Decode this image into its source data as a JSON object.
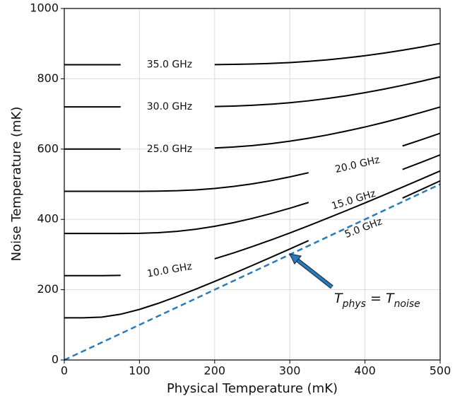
{
  "chart_data": {
    "type": "line",
    "xlabel": "Physical Temperature (mK)",
    "ylabel": "Noise Temperature (mK)",
    "xlim": [
      0,
      500
    ],
    "ylim": [
      0,
      1000
    ],
    "xticks": [
      0,
      100,
      200,
      300,
      400,
      500
    ],
    "yticks": [
      0,
      200,
      400,
      600,
      800,
      1000
    ],
    "grid": true,
    "x": [
      0,
      25,
      50,
      75,
      100,
      125,
      150,
      175,
      200,
      225,
      250,
      275,
      300,
      325,
      350,
      375,
      400,
      425,
      450,
      475,
      500
    ],
    "series": [
      {
        "name": "5.0 GHz",
        "color": "#000000",
        "values": [
          120,
          120,
          122,
          130.2,
          143.9,
          161.2,
          180.7,
          201.6,
          223.4,
          245.9,
          268.9,
          292.2,
          315.8,
          339.6,
          null,
          null,
          null,
          null,
          460.6,
          485.1,
          509.6
        ]
      },
      {
        "name": "10.0 GHz",
        "color": "#000000",
        "values": [
          240,
          240,
          240,
          240.8,
          null,
          null,
          null,
          null,
          287.9,
          304.5,
          322.5,
          341.5,
          361.4,
          382,
          403.2,
          424.8,
          446.9,
          469.2,
          491.8,
          514.7,
          537.8
        ]
      },
      {
        "name": "15.0 GHz",
        "color": "#000000",
        "values": [
          360,
          360,
          360,
          360,
          360.5,
          362.3,
          366,
          372,
          380.2,
          390.6,
          402.8,
          416.6,
          431.8,
          448.2,
          null,
          null,
          null,
          null,
          542.2,
          562.6,
          583.5
        ]
      },
      {
        "name": "20.0 GHz",
        "color": "#000000",
        "values": [
          480,
          480,
          480,
          480,
          480,
          480.4,
          481.6,
          484,
          488,
          493.7,
          501.1,
          510.2,
          520.8,
          532.8,
          null,
          null,
          null,
          null,
          608.9,
          626.6,
          644.9
        ]
      },
      {
        "name": "25.0 GHz",
        "color": "#000000",
        "values": [
          600,
          600,
          600,
          600,
          null,
          null,
          null,
          null,
          603,
          605.8,
          610,
          615.5,
          622.4,
          630.7,
          640.2,
          651.1,
          662.9,
          675.8,
          689.6,
          704.3,
          719.7
        ]
      },
      {
        "name": "30.0 GHz",
        "color": "#000000",
        "values": [
          720,
          720,
          720,
          720,
          null,
          null,
          null,
          null,
          721.1,
          722.4,
          724.5,
          727.7,
          732,
          737.3,
          743.9,
          751.6,
          760.5,
          770.3,
          781.3,
          793,
          805.6
        ]
      },
      {
        "name": "35.0 GHz",
        "color": "#000000",
        "values": [
          840,
          840,
          840,
          840,
          null,
          null,
          null,
          null,
          840.4,
          841,
          842,
          843.7,
          846.2,
          849.6,
          853.9,
          859.3,
          865.6,
          872.9,
          881.2,
          890.4,
          900.5
        ]
      }
    ],
    "reference_line": {
      "x": [
        0,
        500
      ],
      "values": [
        0,
        500
      ],
      "color": "#2b7bba",
      "dashed": true
    },
    "annotation": {
      "parts": [
        "T",
        "phys",
        " = T",
        "noise"
      ]
    }
  }
}
